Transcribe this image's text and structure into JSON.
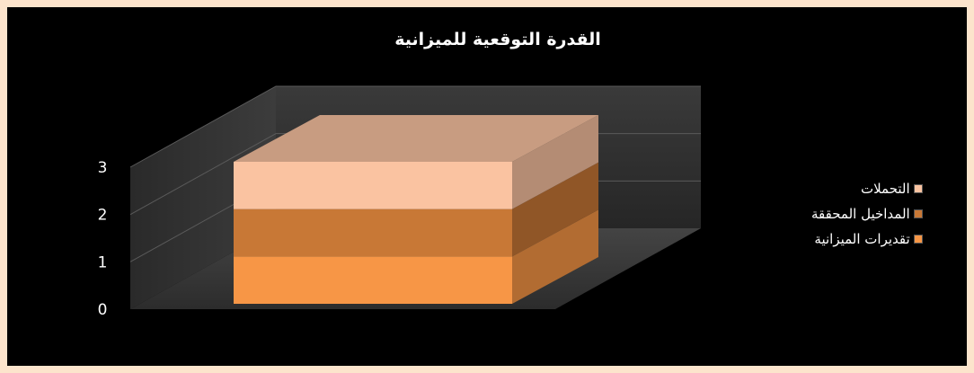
{
  "chart_data": {
    "type": "bar",
    "variant": "3d-stacked",
    "title": "القدرة التوقعية للميزانية",
    "categories": [
      ""
    ],
    "ylim": [
      0,
      3
    ],
    "yticks": [
      "0",
      "1",
      "2",
      "3"
    ],
    "grid": true,
    "legend_position": "right",
    "series": [
      {
        "name": "تقديرات الميزانية",
        "values": [
          1
        ],
        "color": "#f79646"
      },
      {
        "name": "المداخيل المحققة",
        "values": [
          1
        ],
        "color": "#c87836"
      },
      {
        "name": "التحملات",
        "values": [
          1
        ],
        "color": "#fac3a1"
      }
    ]
  }
}
